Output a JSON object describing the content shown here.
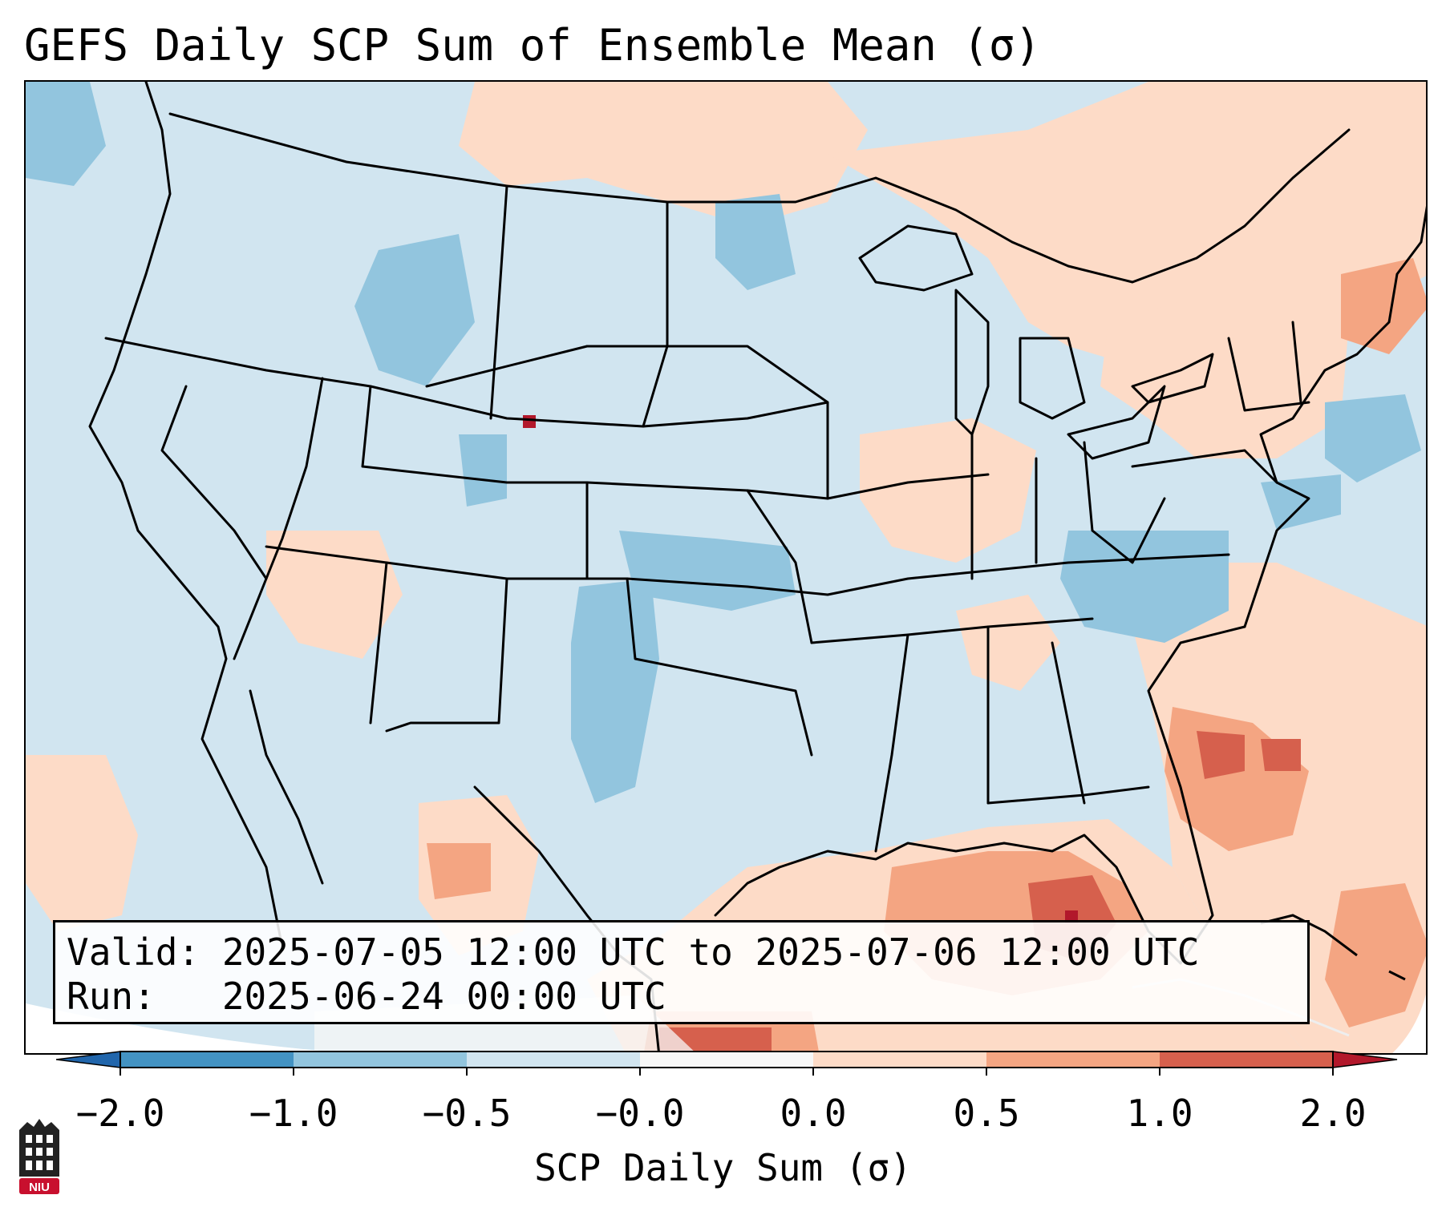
{
  "title": "GEFS Daily SCP Sum of Ensemble Mean (σ)",
  "info": {
    "valid": "Valid: 2025-07-05 12:00 UTC to 2025-07-06 12:00 UTC",
    "run": "Run:   2025-06-24 00:00 UTC"
  },
  "colorbar": {
    "label": "SCP Daily Sum (σ)",
    "ticks": [
      "−2.0",
      "−1.0",
      "−0.5",
      "−0.0",
      "0.0",
      "0.5",
      "1.0",
      "2.0"
    ],
    "colors": [
      "#2166ac",
      "#4393c3",
      "#92c5de",
      "#d1e5f0",
      "#f7f7f7",
      "#fddbc7",
      "#f4a582",
      "#d6604d",
      "#b2182b"
    ]
  },
  "logo": {
    "text": "NIU"
  },
  "map": {
    "region": "Contiguous United States",
    "colors": {
      "background": "#d1e5f0",
      "weak_neg": "#92c5de",
      "weak_pos": "#fddbc7",
      "mod_pos": "#f4a582",
      "strong_pos": "#d6604d",
      "max_pos": "#b2182b"
    }
  }
}
